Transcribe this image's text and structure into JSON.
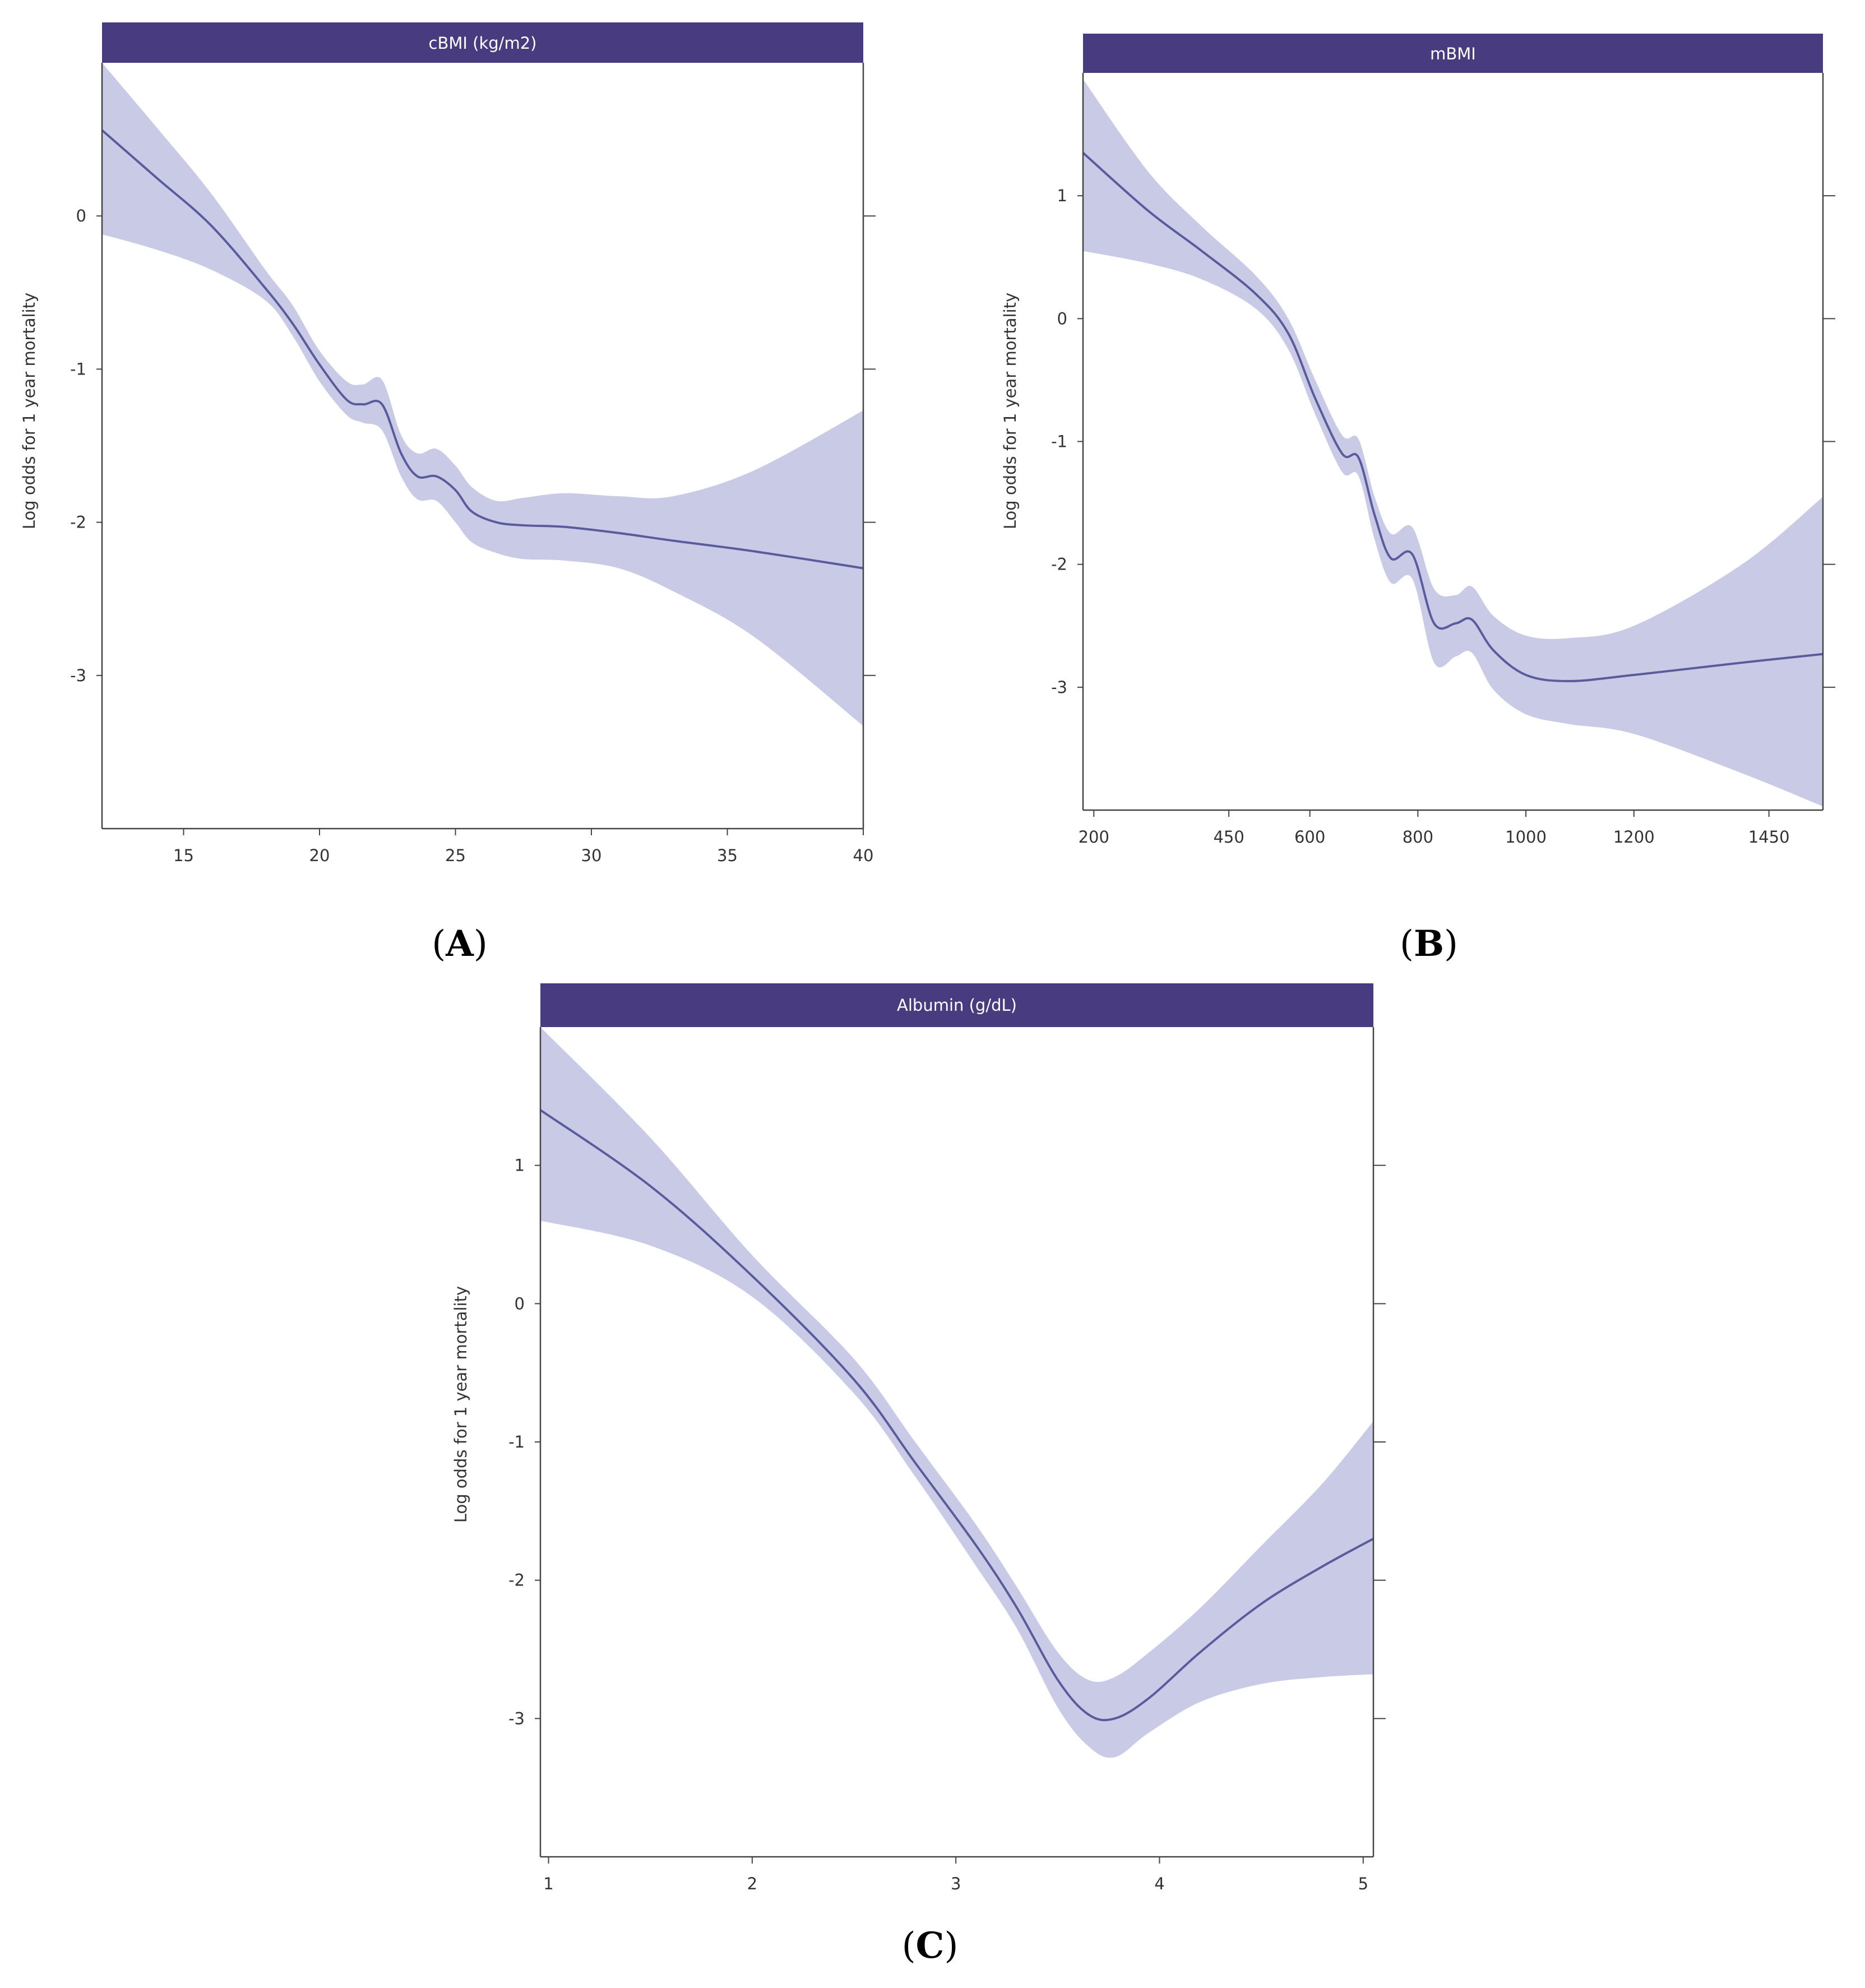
{
  "colors": {
    "strip": "#483c7e",
    "band": "#c8cae6",
    "line": "#5a5b9c",
    "axis": "#444444"
  },
  "chart_data": [
    {
      "type": "line",
      "panel": "A",
      "panel_label": "A",
      "title": "cBMI (kg/m2)",
      "xlabel": "",
      "ylabel": "Log odds for 1 year mortality",
      "xlim": [
        12,
        40
      ],
      "ylim": [
        -4,
        1
      ],
      "xticks": [
        15,
        20,
        25,
        30,
        35,
        40
      ],
      "yticks": [
        0,
        -1,
        -2,
        -3
      ],
      "x": [
        12,
        14,
        16,
        18,
        19,
        20,
        21,
        21.6,
        22.3,
        23,
        23.6,
        24.3,
        25,
        25.6,
        26.5,
        27.5,
        29,
        31,
        33,
        36,
        40
      ],
      "fit": [
        0.56,
        0.25,
        -0.06,
        -0.47,
        -0.7,
        -0.97,
        -1.2,
        -1.23,
        -1.23,
        -1.55,
        -1.7,
        -1.7,
        -1.79,
        -1.93,
        -2,
        -2.02,
        -2.03,
        -2.07,
        -2.12,
        -2.19,
        -2.3
      ],
      "lower": [
        -0.12,
        -0.22,
        -0.35,
        -0.55,
        -0.78,
        -1.08,
        -1.3,
        -1.35,
        -1.4,
        -1.7,
        -1.85,
        -1.86,
        -2,
        -2.13,
        -2.2,
        -2.24,
        -2.25,
        -2.3,
        -2.45,
        -2.75,
        -3.33
      ],
      "upper": [
        1.05,
        0.58,
        0.15,
        -0.35,
        -0.58,
        -0.88,
        -1.08,
        -1.1,
        -1.07,
        -1.43,
        -1.55,
        -1.52,
        -1.63,
        -1.77,
        -1.86,
        -1.84,
        -1.81,
        -1.83,
        -1.83,
        -1.66,
        -1.27
      ]
    },
    {
      "type": "line",
      "panel": "B",
      "panel_label": "B",
      "title": "mBMI",
      "xlabel": "",
      "ylabel": "Log odds for 1 year mortality",
      "xlim": [
        180,
        1550
      ],
      "ylim": [
        -4,
        2
      ],
      "xticks": [
        200,
        450,
        600,
        800,
        1000,
        1200,
        1450
      ],
      "yticks": [
        1,
        0,
        -1,
        -2,
        -3
      ],
      "x": [
        180,
        300,
        400,
        500,
        560,
        610,
        660,
        690,
        720,
        750,
        790,
        830,
        870,
        900,
        940,
        1000,
        1080,
        1200,
        1400,
        1550
      ],
      "fit": [
        1.35,
        0.88,
        0.55,
        0.2,
        -0.12,
        -0.65,
        -1.1,
        -1.13,
        -1.6,
        -1.95,
        -1.92,
        -2.48,
        -2.48,
        -2.45,
        -2.7,
        -2.9,
        -2.95,
        -2.9,
        -2.8,
        -2.73
      ],
      "lower": [
        0.55,
        0.45,
        0.32,
        0.08,
        -0.25,
        -0.78,
        -1.25,
        -1.28,
        -1.8,
        -2.15,
        -2.12,
        -2.8,
        -2.75,
        -2.72,
        -3.02,
        -3.22,
        -3.3,
        -3.38,
        -3.7,
        -3.97
      ],
      "upper": [
        1.95,
        1.2,
        0.75,
        0.35,
        0,
        -0.5,
        -0.95,
        -0.98,
        -1.45,
        -1.75,
        -1.7,
        -2.2,
        -2.25,
        -2.18,
        -2.42,
        -2.58,
        -2.6,
        -2.5,
        -2,
        -1.45
      ]
    },
    {
      "type": "line",
      "panel": "C",
      "panel_label": "C",
      "title": "Albumin (g/dL)",
      "xlabel": "",
      "ylabel": "Log odds for 1 year mortality",
      "xlim": [
        0.96,
        5.05
      ],
      "ylim": [
        -4,
        2
      ],
      "xticks": [
        1,
        2,
        3,
        4,
        5
      ],
      "yticks": [
        1,
        0,
        -1,
        -2,
        -3
      ],
      "x": [
        0.96,
        1.5,
        2,
        2.5,
        2.8,
        3.1,
        3.3,
        3.5,
        3.65,
        3.78,
        3.95,
        4.2,
        4.5,
        4.8,
        5.05
      ],
      "fit": [
        1.4,
        0.85,
        0.2,
        -0.55,
        -1.15,
        -1.75,
        -2.2,
        -2.72,
        -2.97,
        -3,
        -2.85,
        -2.52,
        -2.17,
        -1.9,
        -1.7
      ],
      "lower": [
        0.6,
        0.42,
        0.05,
        -0.65,
        -1.25,
        -1.9,
        -2.35,
        -2.92,
        -3.2,
        -3.28,
        -3.1,
        -2.88,
        -2.75,
        -2.7,
        -2.68
      ],
      "upper": [
        2,
        1.2,
        0.35,
        -0.4,
        -1,
        -1.6,
        -2.05,
        -2.52,
        -2.72,
        -2.7,
        -2.52,
        -2.2,
        -1.75,
        -1.3,
        -0.85
      ]
    }
  ]
}
